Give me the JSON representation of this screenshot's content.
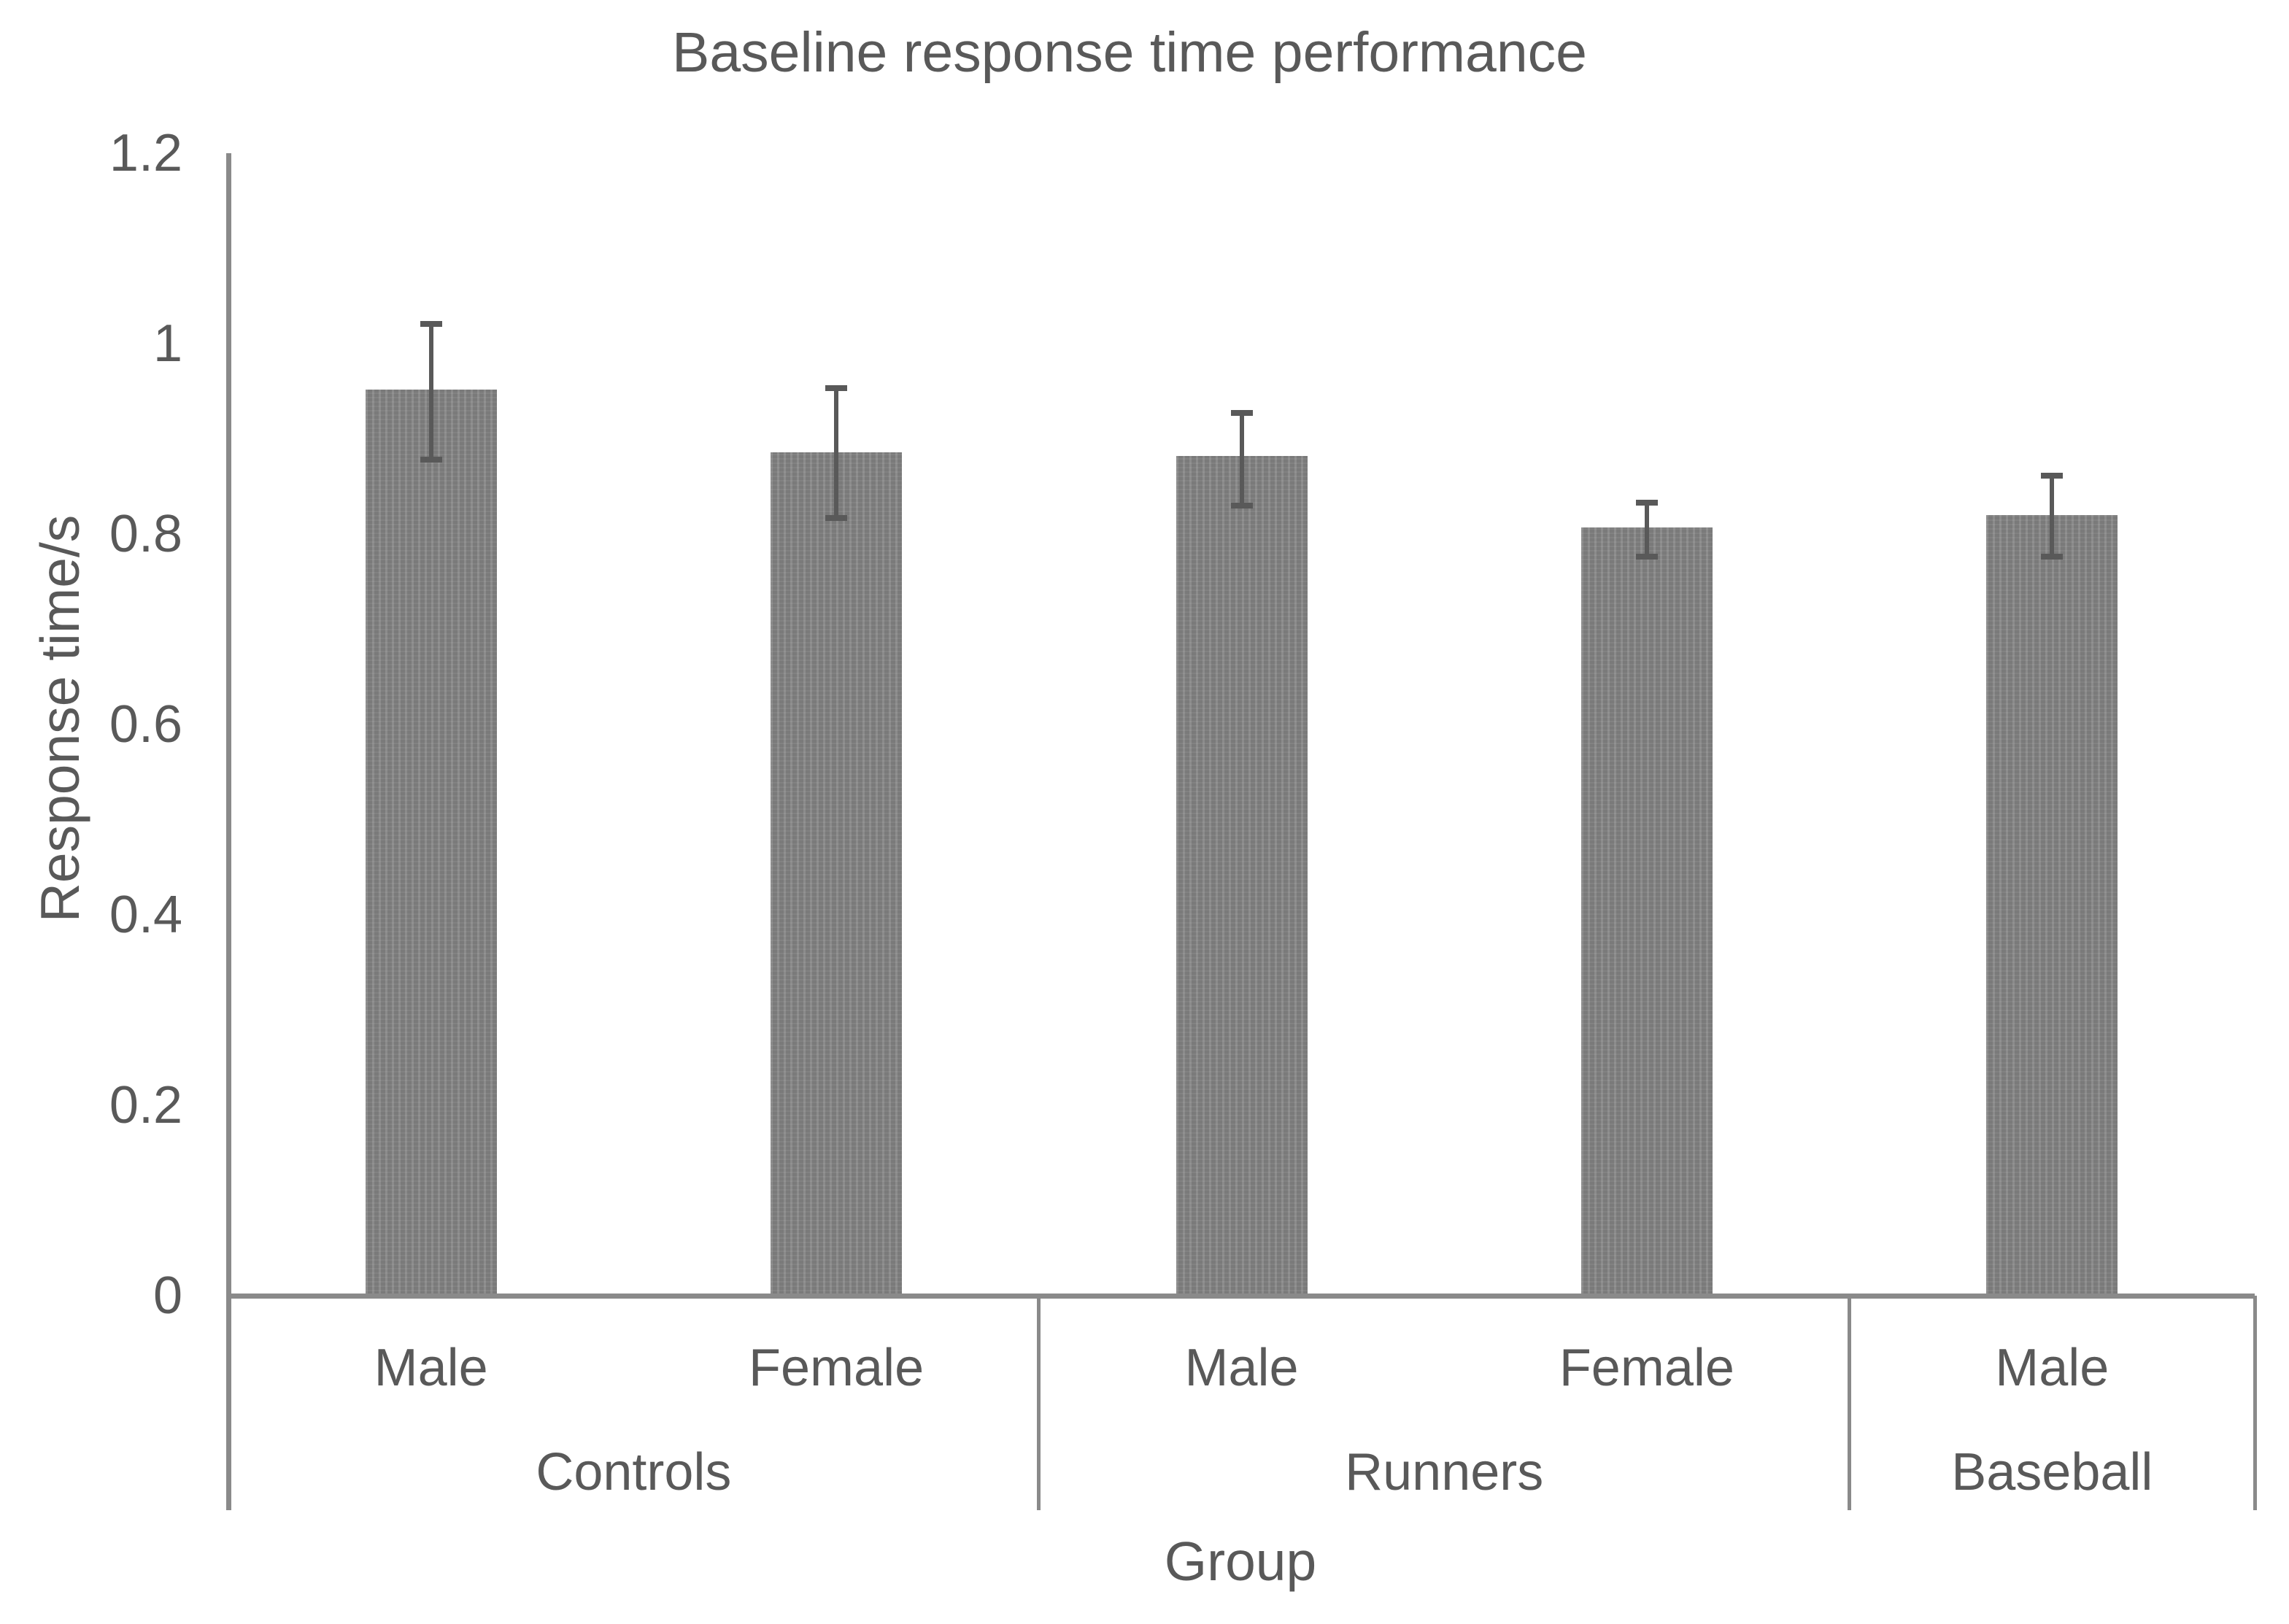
{
  "chart_data": {
    "type": "bar",
    "title": "Baseline response time performance",
    "xlabel": "Group",
    "ylabel": "Response time/s",
    "ylim": [
      0,
      1.2
    ],
    "yticks": [
      "0",
      "0.2",
      "0.4",
      "0.6",
      "0.8",
      "1",
      "1.2"
    ],
    "grid": false,
    "legend": "none",
    "bar_color": "#7f7f7f",
    "error_bar_color": "#595959",
    "axis_line_color": "#8a8a8a",
    "text_color": "#595959",
    "groups": [
      {
        "label": "Controls",
        "bars": [
          {
            "label": "Male",
            "value": 0.952,
            "err_low": 0.878,
            "err_high": 1.021
          },
          {
            "label": "Female",
            "value": 0.886,
            "err_low": 0.817,
            "err_high": 0.953
          }
        ]
      },
      {
        "label": "Runners",
        "bars": [
          {
            "label": "Male",
            "value": 0.882,
            "err_low": 0.83,
            "err_high": 0.927
          },
          {
            "label": "Female",
            "value": 0.807,
            "err_low": 0.776,
            "err_high": 0.833
          }
        ]
      },
      {
        "label": "Baseball",
        "bars": [
          {
            "label": "Male",
            "value": 0.82,
            "err_low": 0.776,
            "err_high": 0.861
          }
        ]
      }
    ]
  }
}
